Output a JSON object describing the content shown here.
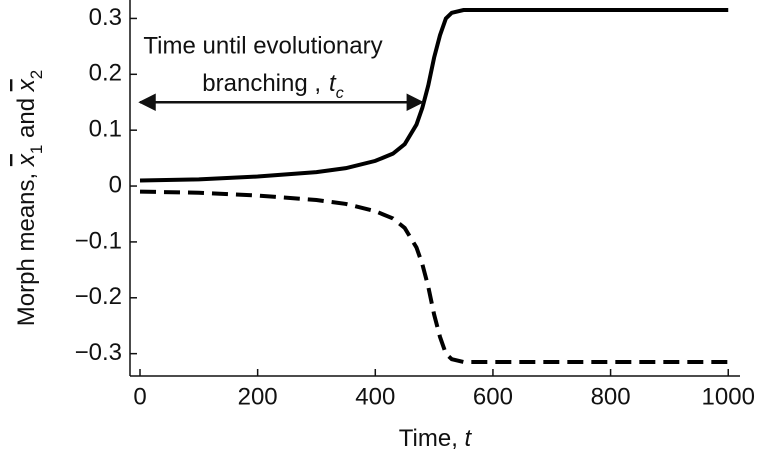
{
  "chart_data": {
    "type": "line",
    "x_label": [
      "Time, ",
      "t"
    ],
    "y_label": [
      "Morph means, ",
      "x",
      "1",
      " and ",
      "x",
      "2"
    ],
    "x": [
      0,
      100,
      200,
      300,
      350,
      400,
      430,
      450,
      470,
      480,
      490,
      500,
      510,
      520,
      530,
      550,
      600,
      700,
      800,
      900,
      1000
    ],
    "series": [
      {
        "color": "#000000",
        "dash": false,
        "values": [
          0.01,
          0.012,
          0.017,
          0.025,
          0.032,
          0.045,
          0.058,
          0.075,
          0.11,
          0.14,
          0.18,
          0.23,
          0.27,
          0.3,
          0.31,
          0.315,
          0.315,
          0.315,
          0.315,
          0.315,
          0.315
        ]
      },
      {
        "color": "#000000",
        "dash": true,
        "values": [
          -0.01,
          -0.012,
          -0.017,
          -0.025,
          -0.032,
          -0.045,
          -0.058,
          -0.075,
          -0.11,
          -0.14,
          -0.18,
          -0.23,
          -0.27,
          -0.3,
          -0.31,
          -0.315,
          -0.315,
          -0.315,
          -0.315,
          -0.315,
          -0.315
        ]
      }
    ],
    "annotation": {
      "lines": [
        "Time until  evolutionary",
        "branching ,"
      ],
      "symbol": "t",
      "subscript": "c",
      "arrow_x": [
        0,
        480
      ],
      "arrow_y": 0.15
    },
    "xlim": [
      -17,
      1020
    ],
    "ylim": [
      -0.34,
      0.333
    ],
    "xticks": [
      0,
      200,
      400,
      600,
      800,
      1000
    ],
    "yticks": [
      {
        "value": -0.3,
        "label": "−0.3"
      },
      {
        "value": -0.2,
        "label": "−0.2"
      },
      {
        "value": -0.1,
        "label": "−0.1"
      },
      0,
      0.1,
      0.2,
      0.3
    ]
  }
}
